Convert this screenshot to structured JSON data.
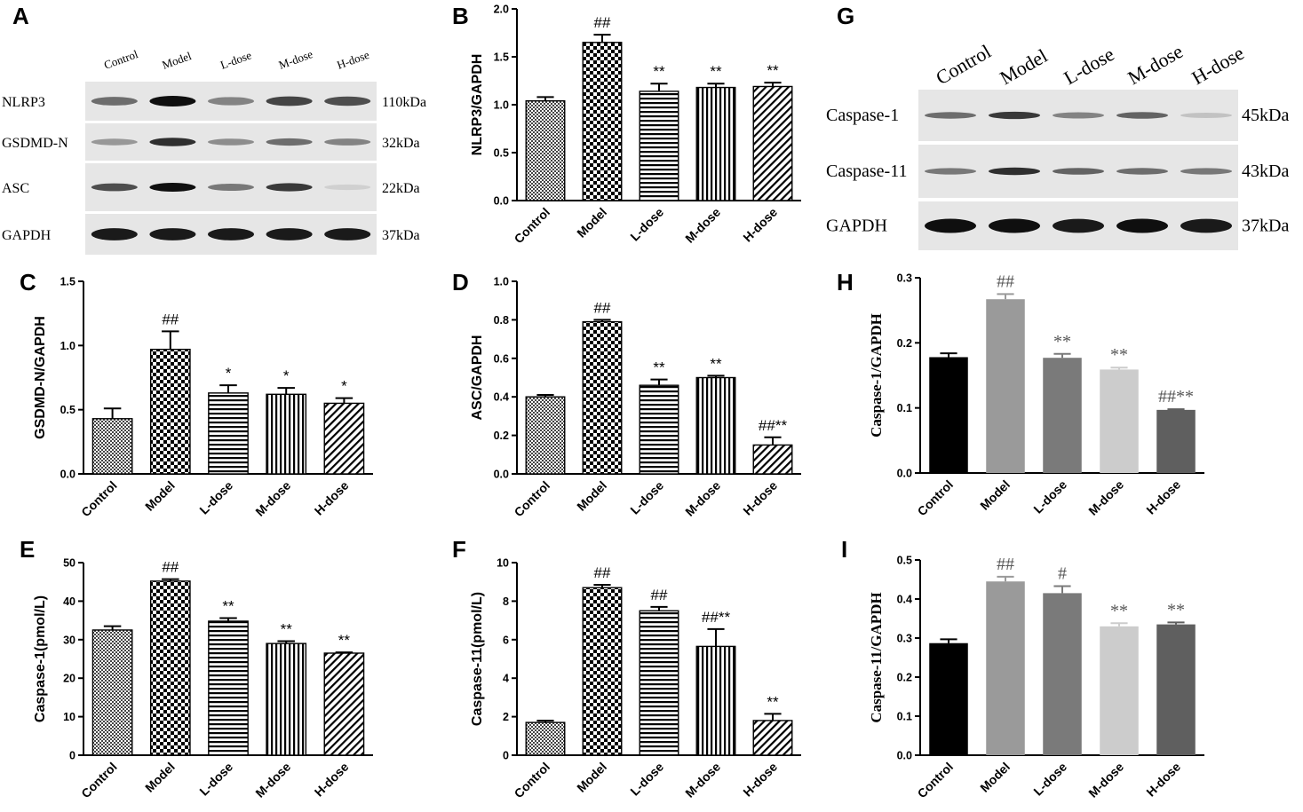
{
  "blots": [
    {
      "panel": "A",
      "lanes": [
        "Control",
        "Model",
        "L-dose",
        "M-dose",
        "H-dose"
      ],
      "rows": [
        {
          "label": "NLRP3",
          "size": "110kDa",
          "intensity": [
            0.55,
            1.0,
            0.45,
            0.75,
            0.7
          ]
        },
        {
          "label": "GSDMD-N",
          "size": "32kDa",
          "intensity": [
            0.35,
            0.85,
            0.4,
            0.55,
            0.45
          ]
        },
        {
          "label": "ASC",
          "size": "22kDa",
          "intensity": [
            0.7,
            1.0,
            0.5,
            0.8,
            0.08
          ]
        },
        {
          "label": "GAPDH",
          "size": "37kDa",
          "intensity": [
            0.95,
            0.95,
            0.95,
            0.95,
            0.95
          ]
        }
      ]
    },
    {
      "panel": "G",
      "lanes": [
        "Control",
        "Model",
        "L-dose",
        "M-dose",
        "H-dose"
      ],
      "rows": [
        {
          "label": "Caspase-1",
          "size": "45kDa",
          "intensity": [
            0.55,
            0.8,
            0.45,
            0.6,
            0.15
          ]
        },
        {
          "label": "Caspase-11",
          "size": "43kDa",
          "intensity": [
            0.5,
            0.85,
            0.6,
            0.55,
            0.5
          ]
        },
        {
          "label": "GAPDH",
          "size": "37kDa",
          "intensity": [
            1.0,
            1.0,
            0.95,
            1.0,
            0.95
          ]
        }
      ]
    }
  ],
  "chart_data": [
    {
      "panel": "B",
      "type": "bar",
      "style": "pattern",
      "categories": [
        "Control",
        "Model",
        "L-dose",
        "M-dose",
        "H-dose"
      ],
      "values": [
        1.04,
        1.65,
        1.14,
        1.18,
        1.19
      ],
      "errors": [
        0.04,
        0.08,
        0.08,
        0.04,
        0.04
      ],
      "annotations": [
        "",
        "##",
        "**",
        "**",
        "**"
      ],
      "ylabel": "NLRP3/GAPDH",
      "ylim": [
        0,
        2.0
      ],
      "yticks": [
        "0.0",
        "0.5",
        "1.0",
        "1.5",
        "2.0"
      ]
    },
    {
      "panel": "C",
      "type": "bar",
      "style": "pattern",
      "categories": [
        "Control",
        "Model",
        "L-dose",
        "M-dose",
        "H-dose"
      ],
      "values": [
        0.43,
        0.97,
        0.63,
        0.62,
        0.55
      ],
      "errors": [
        0.08,
        0.14,
        0.06,
        0.05,
        0.04
      ],
      "annotations": [
        "",
        "##",
        "*",
        "*",
        "*"
      ],
      "ylabel": "GSDMD-N/GAPDH",
      "ylim": [
        0,
        1.5
      ],
      "yticks": [
        "0.0",
        "0.5",
        "1.0",
        "1.5"
      ]
    },
    {
      "panel": "D",
      "type": "bar",
      "style": "pattern",
      "categories": [
        "Control",
        "Model",
        "L-dose",
        "M-dose",
        "H-dose"
      ],
      "values": [
        0.4,
        0.79,
        0.46,
        0.5,
        0.15
      ],
      "errors": [
        0.01,
        0.01,
        0.03,
        0.01,
        0.04
      ],
      "annotations": [
        "",
        "##",
        "**",
        "**",
        "##**"
      ],
      "ylabel": "ASC/GAPDH",
      "ylim": [
        0,
        1.0
      ],
      "yticks": [
        "0.0",
        "0.2",
        "0.4",
        "0.6",
        "0.8",
        "1.0"
      ]
    },
    {
      "panel": "E",
      "type": "bar",
      "style": "pattern",
      "categories": [
        "Control",
        "Model",
        "L-dose",
        "M-dose",
        "H-dose"
      ],
      "values": [
        32.5,
        45.2,
        34.8,
        29.0,
        26.5
      ],
      "errors": [
        1.0,
        0.5,
        0.8,
        0.6,
        0.2
      ],
      "annotations": [
        "",
        "##",
        "**",
        "**",
        "**"
      ],
      "ylabel": "Caspase-1(pmol/L)",
      "ylim": [
        0,
        50
      ],
      "yticks": [
        "0",
        "10",
        "20",
        "30",
        "40",
        "50"
      ]
    },
    {
      "panel": "F",
      "type": "bar",
      "style": "pattern",
      "categories": [
        "Control",
        "Model",
        "L-dose",
        "M-dose",
        "H-dose"
      ],
      "values": [
        1.7,
        8.7,
        7.5,
        5.65,
        1.8
      ],
      "errors": [
        0.1,
        0.15,
        0.2,
        0.9,
        0.35
      ],
      "annotations": [
        "",
        "##",
        "##",
        "##**",
        "**"
      ],
      "ylabel": "Caspase-11(pmol/L)",
      "ylim": [
        0,
        10
      ],
      "yticks": [
        "0",
        "2",
        "4",
        "6",
        "8",
        "10"
      ]
    },
    {
      "panel": "H",
      "type": "bar",
      "style": "gray",
      "categories": [
        "Control",
        "Model",
        "L-dose",
        "M-dose",
        "H-dose"
      ],
      "values": [
        0.178,
        0.267,
        0.177,
        0.159,
        0.097
      ],
      "errors": [
        0.006,
        0.008,
        0.006,
        0.003,
        0.001
      ],
      "annotations": [
        "",
        "##",
        "**",
        "**",
        "##**"
      ],
      "colors": [
        "#000000",
        "#9a9a9a",
        "#7a7a7a",
        "#cccccc",
        "#5f5f5f"
      ],
      "ylabel": "Caspase-1/GAPDH",
      "ylim": [
        0,
        0.3
      ],
      "yticks": [
        "0.0",
        "0.1",
        "0.2",
        "0.3"
      ]
    },
    {
      "panel": "I",
      "type": "bar",
      "style": "gray",
      "categories": [
        "Control",
        "Model",
        "L-dose",
        "M-dose",
        "H-dose"
      ],
      "values": [
        0.287,
        0.445,
        0.415,
        0.33,
        0.335
      ],
      "errors": [
        0.01,
        0.012,
        0.018,
        0.008,
        0.005
      ],
      "annotations": [
        "",
        "##",
        "#",
        "**",
        "**"
      ],
      "colors": [
        "#000000",
        "#9a9a9a",
        "#7a7a7a",
        "#cccccc",
        "#5f5f5f"
      ],
      "ylabel": "Caspase-11/GAPDH",
      "ylim": [
        0,
        0.5
      ],
      "yticks": [
        "0.0",
        "0.1",
        "0.2",
        "0.3",
        "0.4",
        "0.5"
      ]
    }
  ]
}
